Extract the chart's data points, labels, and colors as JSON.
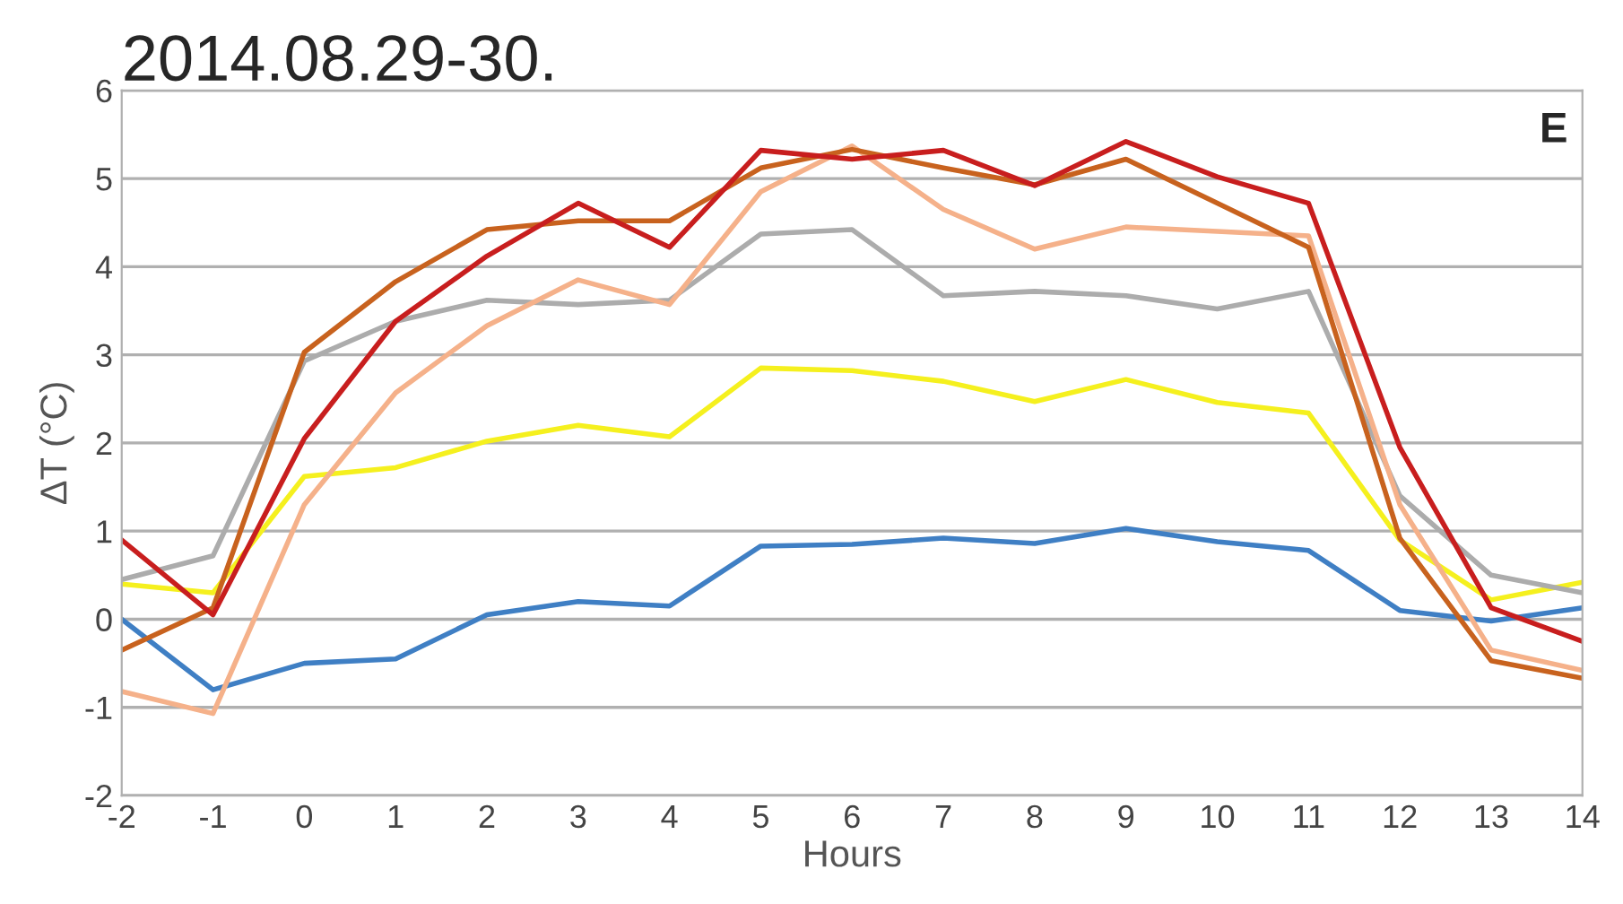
{
  "chart_data": {
    "type": "line",
    "title": "2014.08.29-30.",
    "xlabel": "Hours",
    "ylabel": "ΔT (°C)",
    "annotations": [
      "E"
    ],
    "x": [
      -2,
      -1,
      0,
      1,
      2,
      3,
      4,
      5,
      6,
      7,
      8,
      9,
      10,
      11,
      12,
      13,
      14
    ],
    "series": [
      {
        "color": "#3f7fc4",
        "values": [
          0,
          -0.8,
          -0.5,
          -0.45,
          0.05,
          0.2,
          0.15,
          0.83,
          0.85,
          0.92,
          0.86,
          1.03,
          0.88,
          0.78,
          0.1,
          -0.02,
          0.13
        ]
      },
      {
        "color": "#f5f01e",
        "values": [
          0.4,
          0.3,
          1.62,
          1.72,
          2.02,
          2.2,
          2.07,
          2.85,
          2.82,
          2.7,
          2.47,
          2.72,
          2.46,
          2.34,
          0.9,
          0.22,
          0.42
        ]
      },
      {
        "color": "#acacac",
        "values": [
          0.45,
          0.72,
          2.93,
          3.38,
          3.62,
          3.57,
          3.62,
          4.37,
          4.42,
          3.67,
          3.72,
          3.67,
          3.52,
          3.72,
          1.4,
          0.5,
          0.3
        ]
      },
      {
        "color": "#f5b18a",
        "values": [
          -0.82,
          -1.07,
          1.3,
          2.57,
          3.33,
          3.85,
          3.57,
          4.85,
          5.37,
          4.65,
          4.2,
          4.45,
          4.4,
          4.35,
          1.3,
          -0.35,
          -0.58
        ]
      },
      {
        "color": "#c8621e",
        "values": [
          -0.35,
          0.13,
          3.03,
          3.83,
          4.42,
          4.52,
          4.52,
          5.12,
          5.33,
          5.12,
          4.93,
          5.22,
          4.72,
          4.22,
          0.92,
          -0.47,
          -0.67
        ]
      },
      {
        "color": "#c81e1e",
        "values": [
          0.9,
          0.05,
          2.05,
          3.38,
          4.12,
          4.72,
          4.22,
          5.32,
          5.22,
          5.32,
          4.92,
          5.42,
          5.02,
          4.72,
          1.95,
          0.13,
          -0.25
        ]
      }
    ],
    "xlim": [
      -2,
      14
    ],
    "xticks": [
      -2,
      -1,
      0,
      1,
      2,
      3,
      4,
      5,
      6,
      7,
      8,
      9,
      10,
      11,
      12,
      13,
      14
    ],
    "ylim": [
      -2,
      6
    ],
    "yticks": [
      -2,
      -1,
      0,
      1,
      2,
      3,
      4,
      5,
      6
    ],
    "grid": "y",
    "legend": false,
    "marker": "none",
    "line_style": "solid"
  }
}
